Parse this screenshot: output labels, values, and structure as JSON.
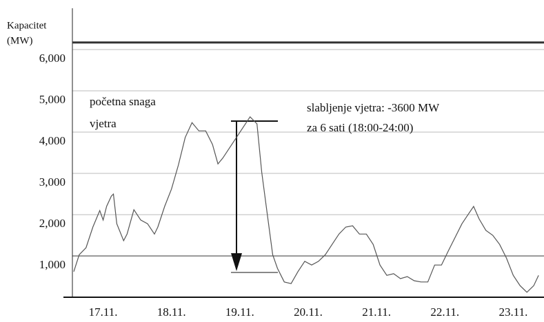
{
  "chart_data": {
    "type": "line",
    "ylabel": [
      "Kapacitet",
      "(MW)"
    ],
    "annotations": [
      "početna snaga",
      "vjetra",
      "slabljenje vjetra: -3600 MW",
      "za 6 sati (18:00-24:00)"
    ],
    "capacity_line": 6170,
    "ylim": [
      0,
      7000
    ],
    "yticks": [
      {
        "value": 1000,
        "label": "1,000"
      },
      {
        "value": 2000,
        "label": "2,000"
      },
      {
        "value": 3000,
        "label": "3,000"
      },
      {
        "value": 4000,
        "label": "4,000"
      },
      {
        "value": 5000,
        "label": "5,000"
      },
      {
        "value": 6000,
        "label": "6,000"
      }
    ],
    "xlim": [
      16.55,
      23.45
    ],
    "xticks": [
      {
        "value": 17,
        "label": "17.11."
      },
      {
        "value": 18,
        "label": "18.11."
      },
      {
        "value": 19,
        "label": "19.11."
      },
      {
        "value": 20,
        "label": "20.11."
      },
      {
        "value": 21,
        "label": "21.11."
      },
      {
        "value": 22,
        "label": "22.11."
      },
      {
        "value": 23,
        "label": "23.11."
      }
    ],
    "x": [
      16.57,
      16.65,
      16.75,
      16.85,
      16.95,
      17.0,
      17.05,
      17.12,
      17.15,
      17.2,
      17.3,
      17.35,
      17.45,
      17.55,
      17.65,
      17.75,
      17.8,
      17.9,
      18.0,
      18.1,
      18.2,
      18.3,
      18.4,
      18.5,
      18.6,
      18.68,
      18.75,
      18.85,
      18.95,
      19.05,
      19.15,
      19.25,
      19.32,
      19.4,
      19.48,
      19.55,
      19.65,
      19.75,
      19.85,
      19.95,
      20.05,
      20.15,
      20.25,
      20.35,
      20.45,
      20.55,
      20.65,
      20.75,
      20.85,
      20.95,
      21.05,
      21.15,
      21.25,
      21.35,
      21.45,
      21.55,
      21.65,
      21.75,
      21.85,
      21.95,
      22.05,
      22.15,
      22.25,
      22.35,
      22.42,
      22.5,
      22.6,
      22.7,
      22.8,
      22.9,
      23.0,
      23.1,
      23.2,
      23.3,
      23.37
    ],
    "series": [
      {
        "name": "Snaga vjetra",
        "color": "#555555",
        "values": [
          620,
          1030,
          1200,
          1700,
          2100,
          1870,
          2200,
          2450,
          2500,
          1780,
          1370,
          1530,
          2120,
          1870,
          1780,
          1530,
          1700,
          2200,
          2620,
          3200,
          3870,
          4230,
          4030,
          4030,
          3700,
          3230,
          3370,
          3620,
          3870,
          4120,
          4370,
          4200,
          3030,
          2030,
          1030,
          700,
          370,
          330,
          620,
          870,
          780,
          870,
          1030,
          1280,
          1530,
          1700,
          1730,
          1530,
          1530,
          1280,
          780,
          530,
          570,
          450,
          500,
          400,
          370,
          370,
          780,
          780,
          1120,
          1450,
          1780,
          2030,
          2200,
          1900,
          1620,
          1500,
          1280,
          950,
          530,
          280,
          120,
          280,
          530
        ]
      }
    ]
  }
}
